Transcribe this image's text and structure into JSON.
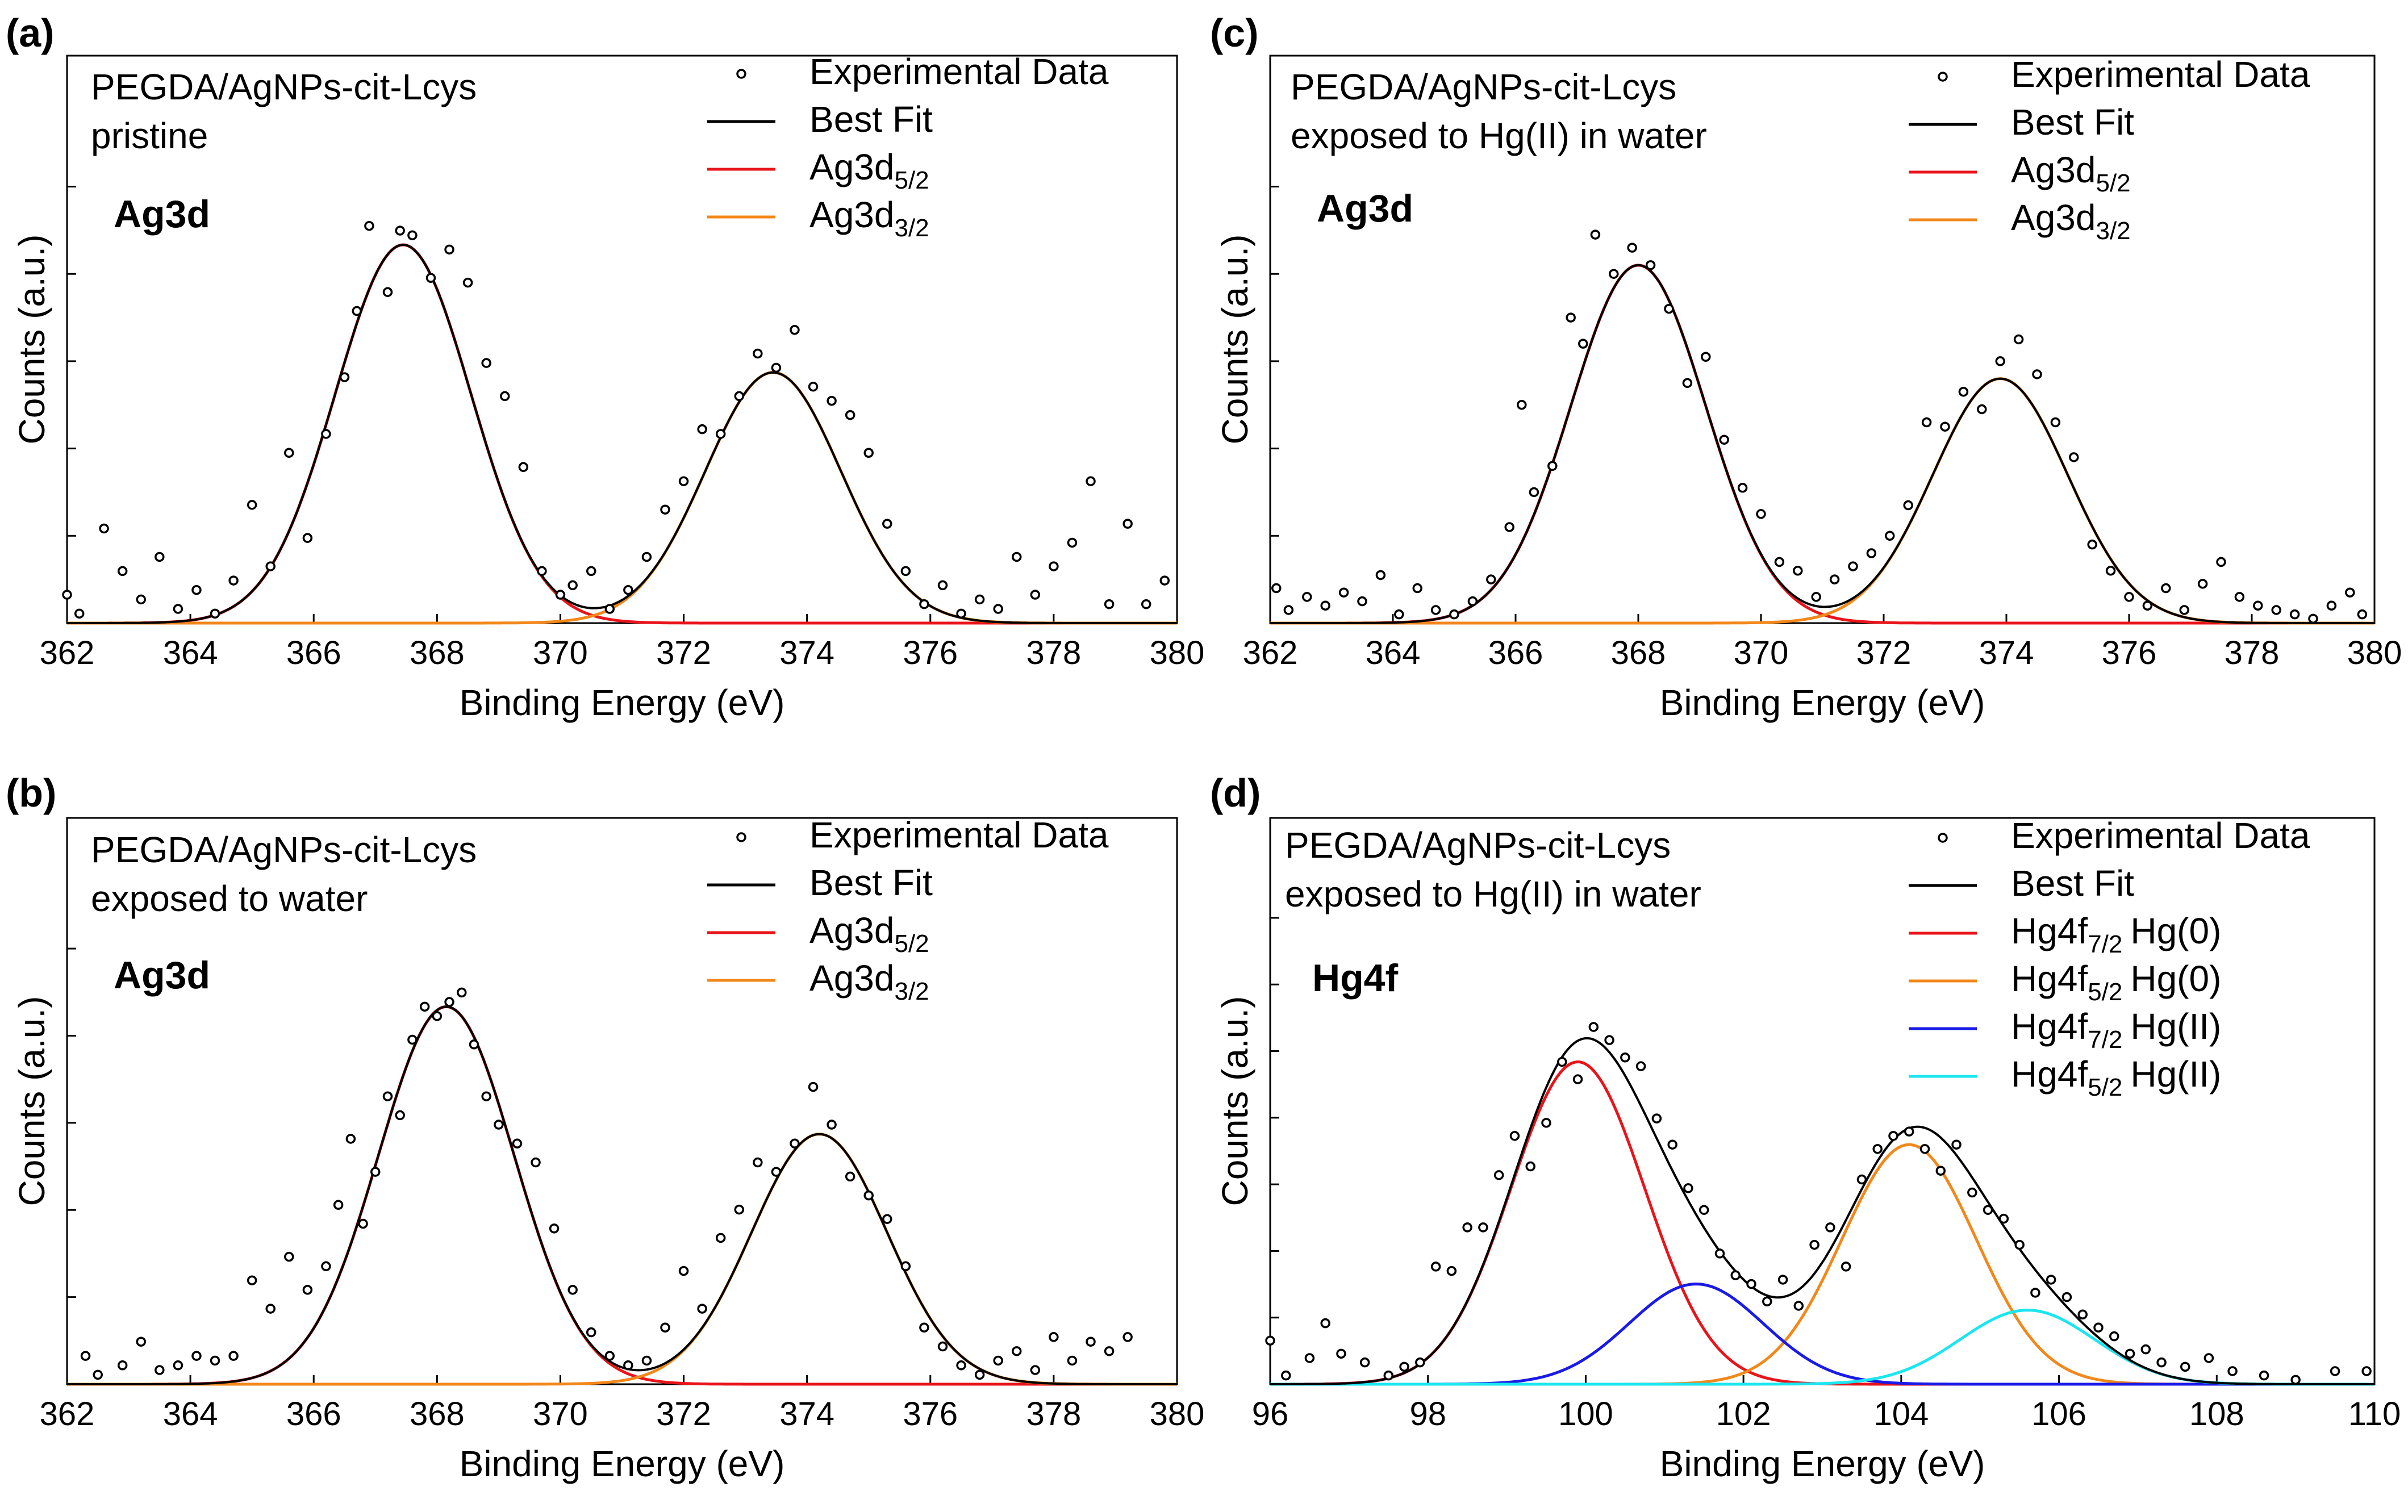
{
  "figure": {
    "colors": {
      "axis": "#000000",
      "data_marker": "#000000",
      "best_fit": "#000000",
      "red": "#e8141a",
      "orange": "#f2871a",
      "blue": "#1a1ae6",
      "cyan": "#1ae6f0"
    }
  },
  "chart_data": [
    {
      "type": "scatter",
      "panel": "(a)",
      "sample_line1": "PEGDA/AgNPs-cit-Lcys",
      "sample_line2": "pristine",
      "element_label": "Ag3d",
      "xlabel": "Binding Energy (eV)",
      "ylabel": "Counts (a.u.)",
      "xlim": [
        362,
        380
      ],
      "ylim": [
        0,
        1.2
      ],
      "xticks": [
        "362",
        "364",
        "366",
        "368",
        "370",
        "372",
        "374",
        "376",
        "378",
        "380"
      ],
      "yticks_count": 5,
      "legend": [
        {
          "label": "Experimental Data",
          "kind": "marker"
        },
        {
          "label": "Best Fit",
          "kind": "line",
          "color": "#000000"
        },
        {
          "label": "Ag3d",
          "sub": "5/2",
          "kind": "line",
          "color": "#e8141a"
        },
        {
          "label": "Ag3d",
          "sub": "3/2",
          "kind": "line",
          "color": "#f2871a"
        }
      ],
      "series": [
        {
          "name": "Ag3d5/2",
          "color": "#e8141a",
          "center": 367.45,
          "amplitude": 0.8,
          "sigma": 1.1
        },
        {
          "name": "Ag3d3/2",
          "color": "#f2871a",
          "center": 373.45,
          "amplitude": 0.53,
          "sigma": 1.1
        }
      ],
      "x": [
        362.0,
        362.2,
        362.6,
        362.9,
        363.2,
        363.5,
        363.8,
        364.1,
        364.4,
        364.7,
        365.0,
        365.3,
        365.6,
        365.9,
        366.2,
        366.5,
        366.7,
        366.9,
        367.2,
        367.4,
        367.6,
        367.9,
        368.2,
        368.5,
        368.8,
        369.1,
        369.4,
        369.7,
        370.0,
        370.2,
        370.5,
        370.8,
        371.1,
        371.4,
        371.7,
        372.0,
        372.3,
        372.6,
        372.9,
        373.2,
        373.5,
        373.8,
        374.1,
        374.4,
        374.7,
        375.0,
        375.3,
        375.6,
        375.9,
        376.2,
        376.5,
        376.8,
        377.1,
        377.4,
        377.7,
        378.0,
        378.3,
        378.6,
        378.9,
        379.2,
        379.5,
        379.8
      ],
      "y": [
        0.06,
        0.02,
        0.2,
        0.11,
        0.05,
        0.14,
        0.03,
        0.07,
        0.02,
        0.09,
        0.25,
        0.12,
        0.36,
        0.18,
        0.4,
        0.52,
        0.66,
        0.84,
        0.7,
        0.83,
        0.82,
        0.73,
        0.79,
        0.72,
        0.55,
        0.48,
        0.33,
        0.11,
        0.06,
        0.08,
        0.11,
        0.03,
        0.07,
        0.14,
        0.24,
        0.3,
        0.41,
        0.4,
        0.48,
        0.57,
        0.54,
        0.62,
        0.5,
        0.47,
        0.44,
        0.36,
        0.21,
        0.11,
        0.04,
        0.08,
        0.02,
        0.05,
        0.03,
        0.14,
        0.06,
        0.12,
        0.17,
        0.3,
        0.04,
        0.21,
        0.04,
        0.09
      ]
    },
    {
      "type": "scatter",
      "panel": "(b)",
      "sample_line1": "PEGDA/AgNPs-cit-Lcys",
      "sample_line2": "exposed to water",
      "element_label": "Ag3d",
      "xlabel": "Binding Energy (eV)",
      "ylabel": "Counts (a.u.)",
      "xlim": [
        362,
        380
      ],
      "ylim": [
        0,
        1.2
      ],
      "xticks": [
        "362",
        "364",
        "366",
        "368",
        "370",
        "372",
        "374",
        "376",
        "378",
        "380"
      ],
      "yticks_count": 5,
      "legend": [
        {
          "label": "Experimental Data",
          "kind": "marker"
        },
        {
          "label": "Best Fit",
          "kind": "line",
          "color": "#000000"
        },
        {
          "label": "Ag3d",
          "sub": "5/2",
          "kind": "line",
          "color": "#e8141a"
        },
        {
          "label": "Ag3d",
          "sub": "3/2",
          "kind": "line",
          "color": "#f2871a"
        }
      ],
      "series": [
        {
          "name": "Ag3d5/2",
          "color": "#e8141a",
          "center": 368.15,
          "amplitude": 0.8,
          "sigma": 1.1
        },
        {
          "name": "Ag3d3/2",
          "color": "#f2871a",
          "center": 374.2,
          "amplitude": 0.53,
          "sigma": 1.1
        }
      ],
      "x": [
        362.3,
        362.5,
        362.9,
        363.2,
        363.5,
        363.8,
        364.1,
        364.4,
        364.7,
        365.0,
        365.3,
        365.6,
        365.9,
        366.2,
        366.4,
        366.6,
        366.8,
        367.0,
        367.2,
        367.4,
        367.6,
        367.8,
        368.0,
        368.2,
        368.4,
        368.6,
        368.8,
        369.0,
        369.3,
        369.6,
        369.9,
        370.2,
        370.5,
        370.8,
        371.1,
        371.4,
        371.7,
        372.0,
        372.3,
        372.6,
        372.9,
        373.2,
        373.5,
        373.8,
        374.1,
        374.4,
        374.7,
        375.0,
        375.3,
        375.6,
        375.9,
        376.2,
        376.5,
        376.8,
        377.1,
        377.4,
        377.7,
        378.0,
        378.3,
        378.6,
        378.9,
        379.2
      ],
      "y": [
        0.06,
        0.02,
        0.04,
        0.09,
        0.03,
        0.04,
        0.06,
        0.05,
        0.06,
        0.22,
        0.16,
        0.27,
        0.2,
        0.25,
        0.38,
        0.52,
        0.34,
        0.45,
        0.61,
        0.57,
        0.73,
        0.8,
        0.78,
        0.81,
        0.83,
        0.72,
        0.61,
        0.55,
        0.51,
        0.47,
        0.33,
        0.2,
        0.11,
        0.06,
        0.04,
        0.05,
        0.12,
        0.24,
        0.16,
        0.31,
        0.37,
        0.47,
        0.45,
        0.51,
        0.63,
        0.55,
        0.44,
        0.4,
        0.35,
        0.25,
        0.12,
        0.08,
        0.04,
        0.02,
        0.05,
        0.07,
        0.03,
        0.1,
        0.05,
        0.09,
        0.07,
        0.1
      ]
    },
    {
      "type": "scatter",
      "panel": "(c)",
      "sample_line1": "PEGDA/AgNPs-cit-Lcys",
      "sample_line2": "exposed to Hg(II) in water",
      "element_label": "Ag3d",
      "xlabel": "Binding Energy (eV)",
      "ylabel": "Counts (a.u.)",
      "xlim": [
        362,
        380
      ],
      "ylim": [
        0,
        1.3
      ],
      "xticks": [
        "362",
        "364",
        "366",
        "368",
        "370",
        "372",
        "374",
        "376",
        "378",
        "380"
      ],
      "yticks_count": 5,
      "legend": [
        {
          "label": "Experimental Data",
          "kind": "marker"
        },
        {
          "label": "Best Fit",
          "kind": "line",
          "color": "#000000"
        },
        {
          "label": "Ag3d",
          "sub": "5/2",
          "kind": "line",
          "color": "#e8141a"
        },
        {
          "label": "Ag3d",
          "sub": "3/2",
          "kind": "line",
          "color": "#f2871a"
        }
      ],
      "series": [
        {
          "name": "Ag3d5/2",
          "color": "#e8141a",
          "center": 368.0,
          "amplitude": 0.82,
          "sigma": 1.1
        },
        {
          "name": "Ag3d3/2",
          "color": "#f2871a",
          "center": 373.9,
          "amplitude": 0.56,
          "sigma": 1.1
        }
      ],
      "x": [
        362.1,
        362.3,
        362.6,
        362.9,
        363.2,
        363.5,
        363.8,
        364.1,
        364.4,
        364.7,
        365.0,
        365.3,
        365.6,
        365.9,
        366.1,
        366.3,
        366.6,
        366.9,
        367.1,
        367.3,
        367.6,
        367.9,
        368.2,
        368.5,
        368.8,
        369.1,
        369.4,
        369.7,
        370.0,
        370.3,
        370.6,
        370.9,
        371.2,
        371.5,
        371.8,
        372.1,
        372.4,
        372.7,
        373.0,
        373.3,
        373.6,
        373.9,
        374.2,
        374.5,
        374.8,
        375.1,
        375.4,
        375.7,
        376.0,
        376.3,
        376.6,
        376.9,
        377.2,
        377.5,
        377.8,
        378.1,
        378.4,
        378.7,
        379.0,
        379.3,
        379.6,
        379.8
      ],
      "y": [
        0.08,
        0.03,
        0.06,
        0.04,
        0.07,
        0.05,
        0.11,
        0.02,
        0.08,
        0.03,
        0.02,
        0.05,
        0.1,
        0.22,
        0.5,
        0.3,
        0.36,
        0.7,
        0.64,
        0.89,
        0.8,
        0.86,
        0.82,
        0.72,
        0.55,
        0.61,
        0.42,
        0.31,
        0.25,
        0.14,
        0.12,
        0.06,
        0.1,
        0.13,
        0.16,
        0.2,
        0.27,
        0.46,
        0.45,
        0.53,
        0.49,
        0.6,
        0.65,
        0.57,
        0.46,
        0.38,
        0.18,
        0.12,
        0.06,
        0.04,
        0.08,
        0.03,
        0.09,
        0.14,
        0.06,
        0.04,
        0.03,
        0.02,
        0.01,
        0.04,
        0.07,
        0.02
      ]
    },
    {
      "type": "scatter",
      "panel": "(d)",
      "sample_line1": "PEGDA/AgNPs-cit-Lcys",
      "sample_line2": "exposed to Hg(II) in water",
      "element_label": "Hg4f",
      "xlabel": "Binding Energy (eV)",
      "ylabel": "Counts (a.u.)",
      "xlim": [
        96,
        110
      ],
      "ylim": [
        0,
        1.3
      ],
      "xticks": [
        "96",
        "98",
        "100",
        "102",
        "104",
        "106",
        "108",
        "110"
      ],
      "yticks_count": 7,
      "legend": [
        {
          "label": "Experimental Data",
          "kind": "marker"
        },
        {
          "label": "Best Fit",
          "kind": "line",
          "color": "#000000"
        },
        {
          "label": "Hg4f",
          "sub": "7/2",
          "suffix": "Hg(0)",
          "kind": "line",
          "color": "#e8141a"
        },
        {
          "label": "Hg4f",
          "sub": "5/2",
          "suffix": "Hg(0)",
          "kind": "line",
          "color": "#f2871a"
        },
        {
          "label": "Hg4f",
          "sub": "7/2",
          "suffix": "Hg(II)",
          "kind": "line",
          "color": "#1a1ae6"
        },
        {
          "label": "Hg4f",
          "sub": "5/2",
          "suffix": "Hg(II)",
          "kind": "line",
          "color": "#1ae6f0"
        }
      ],
      "series": [
        {
          "name": "Hg4f7/2 Hg(0)",
          "color": "#e8141a",
          "center": 99.9,
          "amplitude": 0.74,
          "sigma": 0.85
        },
        {
          "name": "Hg4f5/2 Hg(0)",
          "color": "#f2871a",
          "center": 104.1,
          "amplitude": 0.55,
          "sigma": 0.85
        },
        {
          "name": "Hg4f7/2 Hg(II)",
          "color": "#1a1ae6",
          "center": 101.4,
          "amplitude": 0.23,
          "sigma": 0.85
        },
        {
          "name": "Hg4f5/2 Hg(II)",
          "color": "#1ae6f0",
          "center": 105.6,
          "amplitude": 0.17,
          "sigma": 0.85
        }
      ],
      "x": [
        96.0,
        96.2,
        96.5,
        96.7,
        96.9,
        97.2,
        97.5,
        97.7,
        97.9,
        98.1,
        98.3,
        98.5,
        98.7,
        98.9,
        99.1,
        99.3,
        99.5,
        99.7,
        99.9,
        100.1,
        100.3,
        100.5,
        100.7,
        100.9,
        101.1,
        101.3,
        101.5,
        101.7,
        101.9,
        102.1,
        102.3,
        102.5,
        102.7,
        102.9,
        103.1,
        103.3,
        103.5,
        103.7,
        103.9,
        104.1,
        104.3,
        104.5,
        104.7,
        104.9,
        105.1,
        105.3,
        105.5,
        105.7,
        105.9,
        106.1,
        106.3,
        106.5,
        106.7,
        106.9,
        107.1,
        107.3,
        107.6,
        107.9,
        108.2,
        108.6,
        109.0,
        109.5,
        109.9
      ],
      "y": [
        0.1,
        0.02,
        0.06,
        0.14,
        0.07,
        0.05,
        0.02,
        0.04,
        0.05,
        0.27,
        0.26,
        0.36,
        0.36,
        0.48,
        0.57,
        0.5,
        0.6,
        0.74,
        0.7,
        0.82,
        0.79,
        0.75,
        0.73,
        0.61,
        0.55,
        0.45,
        0.4,
        0.3,
        0.25,
        0.23,
        0.19,
        0.24,
        0.18,
        0.32,
        0.36,
        0.27,
        0.47,
        0.54,
        0.57,
        0.58,
        0.54,
        0.49,
        0.55,
        0.44,
        0.4,
        0.38,
        0.32,
        0.21,
        0.24,
        0.2,
        0.16,
        0.13,
        0.11,
        0.07,
        0.08,
        0.05,
        0.04,
        0.06,
        0.03,
        0.02,
        0.01,
        0.03,
        0.03
      ]
    }
  ]
}
